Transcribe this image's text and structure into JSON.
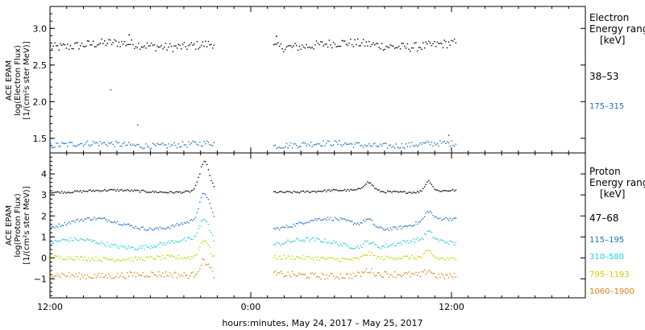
{
  "chart_data": [
    {
      "type": "scatter",
      "panel": "electron",
      "ylabel_lines": [
        "ACE EPAM",
        "log(Electron Flux)",
        "[1/(cm²s ster MeV)]"
      ],
      "ylim": [
        1.3,
        3.3
      ],
      "yticks": [
        "1.5",
        "2.0",
        "2.5",
        "3.0"
      ],
      "ytick_values": [
        1.5,
        2.0,
        2.5,
        3.0
      ],
      "legend_title_lines": [
        "Electron",
        "Energy ranges",
        "[keV]"
      ],
      "gap": [
        21.8,
        25.3
      ],
      "series": [
        {
          "name": "38–53",
          "color": "#000000",
          "mean": 2.78,
          "jitter": 0.06,
          "wave": 0.03,
          "outliers": [
            [
              16.7,
              2.92
            ],
            [
              25.5,
              2.9
            ]
          ]
        },
        {
          "name": "175–315",
          "color": "#1a72c8",
          "mean": 1.42,
          "jitter": 0.04,
          "wave": 0.02,
          "outliers": [
            [
              15.6,
              2.17
            ],
            [
              17.2,
              1.69
            ],
            [
              35.8,
              1.55
            ]
          ]
        }
      ]
    },
    {
      "type": "scatter",
      "panel": "proton",
      "ylabel_lines": [
        "ACE EPAM",
        "log(Proton Flux)",
        "[1/(cm²s ster MeV)]"
      ],
      "ylim": [
        -1.9,
        5.0
      ],
      "yticks": [
        "−1",
        "0",
        "1",
        "2",
        "3",
        "4"
      ],
      "ytick_values": [
        -1,
        0,
        1,
        2,
        3,
        4
      ],
      "legend_title_lines": [
        "Proton",
        "Energy ranges",
        "[keV]"
      ],
      "gap": [
        21.8,
        25.3
      ],
      "series": [
        {
          "name": "47–68",
          "color": "#000000",
          "mean": 3.2,
          "jitter": 0.05,
          "wave": 0.05
        },
        {
          "name": "115–195",
          "color": "#1a72c8",
          "mean": 1.65,
          "jitter": 0.08,
          "wave": 0.25
        },
        {
          "name": "310–580",
          "color": "#20d0d0",
          "mean": 0.7,
          "jitter": 0.1,
          "wave": 0.2
        },
        {
          "name": "795–1193",
          "color": "#c8d400",
          "mean": 0.0,
          "jitter": 0.1,
          "wave": 0.05
        },
        {
          "name": "1060–1900",
          "color": "#e08010",
          "mean": -0.8,
          "jitter": 0.15,
          "wave": 0.05
        }
      ],
      "events": [
        {
          "t": 21.2,
          "amp": 1.4,
          "width": 0.4
        },
        {
          "t": 31.0,
          "amp": 0.4,
          "width": 0.4
        },
        {
          "t": 34.6,
          "amp": 0.5,
          "width": 0.3
        }
      ]
    }
  ],
  "x_axis": {
    "xlim_hours": [
      12,
      44
    ],
    "data_end_hours": 36.3,
    "tick_labels": [
      "12:00",
      "0:00",
      "12:00"
    ],
    "tick_hours": [
      12,
      24,
      36
    ],
    "xlabel": "hours:minutes, May 24, 2017 – May 25, 2017"
  }
}
